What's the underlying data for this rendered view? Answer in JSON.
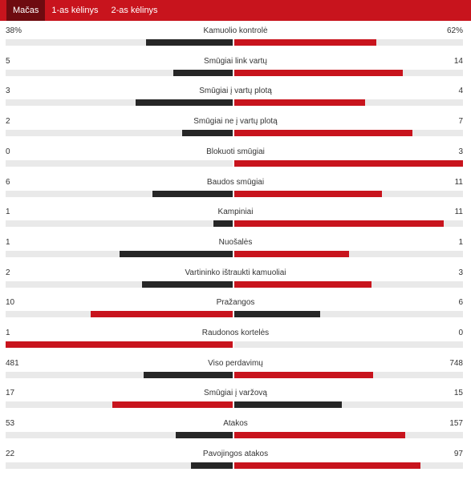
{
  "tabs": [
    {
      "label": "Mačas",
      "active": true
    },
    {
      "label": "1-as kėlinys",
      "active": false
    },
    {
      "label": "2-as kėlinys",
      "active": false
    }
  ],
  "colors": {
    "accent": "#c8141d",
    "active_tab": "#6e0b10",
    "bar_dark": "#262626",
    "track": "#e9e9e9"
  },
  "stats": [
    {
      "name": "Kamuolio kontrolė",
      "home": "38%",
      "away": "62%",
      "home_val": 38,
      "away_val": 62
    },
    {
      "name": "Smūgiai link vartų",
      "home": "5",
      "away": "14",
      "home_val": 5,
      "away_val": 14
    },
    {
      "name": "Smūgiai į vartų plotą",
      "home": "3",
      "away": "4",
      "home_val": 3,
      "away_val": 4
    },
    {
      "name": "Smūgiai ne į vartų plotą",
      "home": "2",
      "away": "7",
      "home_val": 2,
      "away_val": 7
    },
    {
      "name": "Blokuoti smūgiai",
      "home": "0",
      "away": "3",
      "home_val": 0,
      "away_val": 3
    },
    {
      "name": "Baudos smūgiai",
      "home": "6",
      "away": "11",
      "home_val": 6,
      "away_val": 11
    },
    {
      "name": "Kampiniai",
      "home": "1",
      "away": "11",
      "home_val": 1,
      "away_val": 11
    },
    {
      "name": "Nuošalės",
      "home": "1",
      "away": "1",
      "home_val": 1,
      "away_val": 1
    },
    {
      "name": "Vartininko ištraukti kamuoliai",
      "home": "2",
      "away": "3",
      "home_val": 2,
      "away_val": 3
    },
    {
      "name": "Pražangos",
      "home": "10",
      "away": "6",
      "home_val": 10,
      "away_val": 6
    },
    {
      "name": "Raudonos kortelės",
      "home": "1",
      "away": "0",
      "home_val": 1,
      "away_val": 0
    },
    {
      "name": "Viso perdavimų",
      "home": "481",
      "away": "748",
      "home_val": 481,
      "away_val": 748
    },
    {
      "name": "Smūgiai į varžovą",
      "home": "17",
      "away": "15",
      "home_val": 17,
      "away_val": 15
    },
    {
      "name": "Atakos",
      "home": "53",
      "away": "157",
      "home_val": 53,
      "away_val": 157
    },
    {
      "name": "Pavojingos atakos",
      "home": "22",
      "away": "97",
      "home_val": 22,
      "away_val": 97
    }
  ]
}
